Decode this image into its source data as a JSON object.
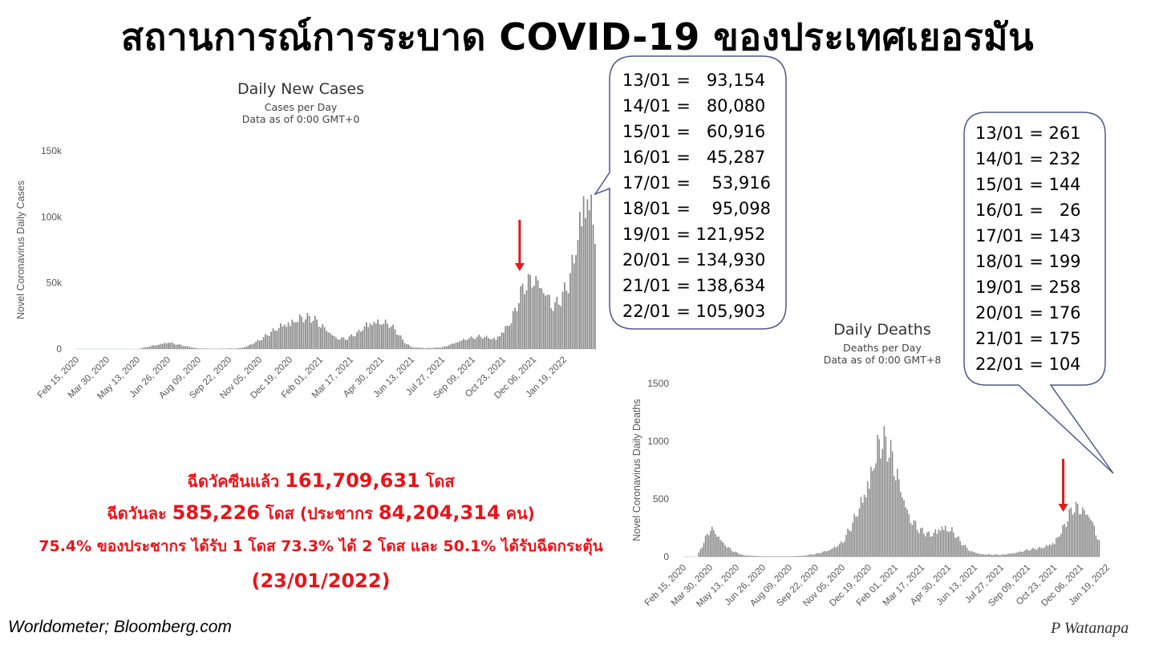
{
  "title": "สถานการณ์การระบาด COVID-19 ของประเทศเยอรมัน",
  "source": "Worldometer;  Bloomberg.com",
  "signature": "P Watanapa",
  "colors": {
    "bar": "#8c8c8c",
    "arrow": "#e01b1b",
    "highlight": "#e8141a",
    "callout_border": "#4a5a8a"
  },
  "vaccine": {
    "line1_prefix": "ฉีดวัคซีนแล้ว",
    "line1_value": "161,709,631",
    "line1_suffix": "โดส",
    "line2_prefix": "ฉีดวันละ",
    "line2_value": "585,226",
    "line2_mid": "โดส (ประชากร",
    "line2_value2": "84,204,314",
    "line2_suffix": "คน)",
    "line3": "75.4% ของประชากร ได้รับ 1 โดส 73.3% ได้ 2 โดส และ 50.1% ได้รับฉีดกระตุ้น",
    "date": "(23/01/2022)"
  },
  "cases_callout": [
    "13/01 =   93,154",
    "14/01 =   80,080",
    "15/01 =   60,916",
    "16/01 =   45,287",
    "17/01 =    53,916",
    "18/01 =    95,098",
    "19/01 = 121,952",
    "20/01 = 134,930",
    "21/01 = 138,634",
    "22/01 = 105,903"
  ],
  "deaths_callout": [
    "13/01 = 261",
    "14/01 = 232",
    "15/01 = 144",
    "16/01 =   26",
    "17/01 = 143",
    "18/01 = 199",
    "19/01 = 258",
    "20/01 = 176",
    "21/01 = 175",
    "22/01 = 104"
  ],
  "chart_data": [
    {
      "type": "bar",
      "title": "Daily New Cases",
      "subtitle": "Cases per Day",
      "subtitle2": "Data as of 0:00 GMT+0",
      "ylabel": "Novel Coronavirus Daily Cases",
      "yticks": [
        "0",
        "50k",
        "100k",
        "150k"
      ],
      "ytick_values": [
        0,
        50000,
        100000,
        150000
      ],
      "ylim": [
        0,
        150000
      ],
      "x_tick_labels": [
        "Feb 15, 2020",
        "Mar 30, 2020",
        "May 13, 2020",
        "Jun 26, 2020",
        "Aug 09, 2020",
        "Sep 22, 2020",
        "Nov 05, 2020",
        "Dec 19, 2020",
        "Feb 01, 2021",
        "Mar 17, 2021",
        "Apr 30, 2021",
        "Jun 13, 2021",
        "Jul 27, 2021",
        "Sep 09, 2021",
        "Oct 23, 2021",
        "Dec 06, 2021",
        "Jan 19, 2022"
      ],
      "envelope": [
        [
          0,
          0
        ],
        [
          4,
          0
        ],
        [
          5,
          3000
        ],
        [
          6,
          6000
        ],
        [
          6.6,
          4000
        ],
        [
          7.5,
          1500
        ],
        [
          8,
          500
        ],
        [
          9,
          200
        ],
        [
          10.5,
          500
        ],
        [
          11,
          1500
        ],
        [
          12,
          8000
        ],
        [
          13,
          17000
        ],
        [
          13.5,
          22000
        ],
        [
          14,
          24000
        ],
        [
          14.8,
          28000
        ],
        [
          15.5,
          27000
        ],
        [
          16,
          22000
        ],
        [
          16.5,
          16000
        ],
        [
          17,
          10000
        ],
        [
          17.7,
          9000
        ],
        [
          18.5,
          15000
        ],
        [
          19,
          22000
        ],
        [
          19.6,
          25000
        ],
        [
          20.5,
          22000
        ],
        [
          21,
          15000
        ],
        [
          21.5,
          6000
        ],
        [
          22,
          1500
        ],
        [
          23,
          800
        ],
        [
          24,
          1500
        ],
        [
          24.7,
          5000
        ],
        [
          25.5,
          9000
        ],
        [
          26.5,
          11000
        ],
        [
          27.5,
          9000
        ],
        [
          28.5,
          25000
        ],
        [
          29.3,
          55000
        ],
        [
          30,
          65000
        ],
        [
          30.7,
          52000
        ],
        [
          31.3,
          38000
        ],
        [
          31.8,
          45000
        ],
        [
          32.3,
          60000
        ],
        [
          32.8,
          95000
        ],
        [
          33.2,
          135000
        ],
        [
          33.6,
          138000
        ],
        [
          34,
          105000
        ]
      ],
      "arrow_x": 29.1
    },
    {
      "type": "bar",
      "title": "Daily Deaths",
      "subtitle": "Deaths per Day",
      "subtitle2": "Data as of 0:00 GMT+8",
      "ylabel": "Novel Coronavirus Daily Deaths",
      "yticks": [
        "0",
        "500",
        "1000",
        "1500"
      ],
      "ytick_values": [
        0,
        500,
        1000,
        1500
      ],
      "ylim": [
        0,
        1500
      ],
      "x_tick_labels": [
        "Feb 15, 2020",
        "Mar 30, 2020",
        "May 13, 2020",
        "Jun 26, 2020",
        "Aug 09, 2020",
        "Sep 22, 2020",
        "Nov 05, 2020",
        "Dec 19, 2020",
        "Feb 01, 2021",
        "Mar 17, 2021",
        "Apr 30, 2021",
        "Jun 13, 2021",
        "Jul 27, 2021",
        "Sep 09, 2021",
        "Oct 23, 2021",
        "Dec 06, 2021",
        "Jan 19, 2022"
      ],
      "envelope": [
        [
          0,
          0
        ],
        [
          1,
          0
        ],
        [
          1.5,
          150
        ],
        [
          2,
          290
        ],
        [
          2.4,
          250
        ],
        [
          2.8,
          170
        ],
        [
          3.3,
          100
        ],
        [
          3.8,
          50
        ],
        [
          4.5,
          15
        ],
        [
          6,
          5
        ],
        [
          8,
          5
        ],
        [
          9,
          10
        ],
        [
          10,
          30
        ],
        [
          11,
          70
        ],
        [
          12,
          150
        ],
        [
          12.8,
          350
        ],
        [
          13.5,
          600
        ],
        [
          14.2,
          900
        ],
        [
          14.8,
          1180
        ],
        [
          15.4,
          1120
        ],
        [
          15.9,
          950
        ],
        [
          16.5,
          650
        ],
        [
          17,
          420
        ],
        [
          17.8,
          270
        ],
        [
          18.6,
          220
        ],
        [
          19.5,
          310
        ],
        [
          20.3,
          260
        ],
        [
          20.9,
          150
        ],
        [
          21.6,
          60
        ],
        [
          22.5,
          25
        ],
        [
          24,
          20
        ],
        [
          25,
          40
        ],
        [
          26,
          70
        ],
        [
          27,
          90
        ],
        [
          28,
          150
        ],
        [
          28.7,
          300
        ],
        [
          29.4,
          500
        ],
        [
          30,
          500
        ],
        [
          30.7,
          420
        ],
        [
          31,
          300
        ],
        [
          31.4,
          150
        ]
      ],
      "arrow_x": 28.7
    }
  ]
}
